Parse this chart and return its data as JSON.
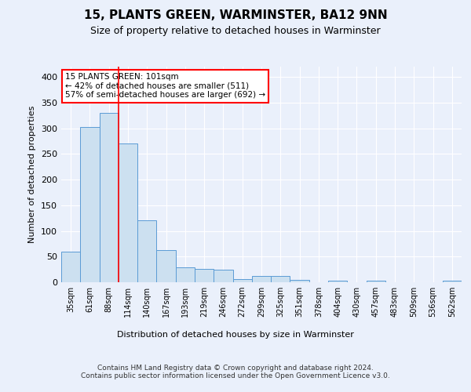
{
  "title1": "15, PLANTS GREEN, WARMINSTER, BA12 9NN",
  "title2": "Size of property relative to detached houses in Warminster",
  "xlabel": "Distribution of detached houses by size in Warminster",
  "ylabel": "Number of detached properties",
  "bar_labels": [
    "35sqm",
    "61sqm",
    "88sqm",
    "114sqm",
    "140sqm",
    "167sqm",
    "193sqm",
    "219sqm",
    "246sqm",
    "272sqm",
    "299sqm",
    "325sqm",
    "351sqm",
    "378sqm",
    "404sqm",
    "430sqm",
    "457sqm",
    "483sqm",
    "509sqm",
    "536sqm",
    "562sqm"
  ],
  "bar_values": [
    60,
    302,
    330,
    270,
    120,
    63,
    29,
    26,
    25,
    6,
    12,
    12,
    4,
    0,
    3,
    0,
    3,
    0,
    0,
    0,
    3
  ],
  "bar_color": "#cce0f0",
  "bar_edge_color": "#5b9bd5",
  "annotation_text": "15 PLANTS GREEN: 101sqm\n← 42% of detached houses are smaller (511)\n57% of semi-detached houses are larger (692) →",
  "annotation_box_color": "white",
  "annotation_box_edge_color": "red",
  "red_line_x": 2.5,
  "footer": "Contains HM Land Registry data © Crown copyright and database right 2024.\nContains public sector information licensed under the Open Government Licence v3.0.",
  "bg_color": "#eaf0fb",
  "plot_bg_color": "#eaf0fb",
  "grid_color": "white",
  "ylim": [
    0,
    420
  ],
  "yticks": [
    0,
    50,
    100,
    150,
    200,
    250,
    300,
    350,
    400
  ]
}
